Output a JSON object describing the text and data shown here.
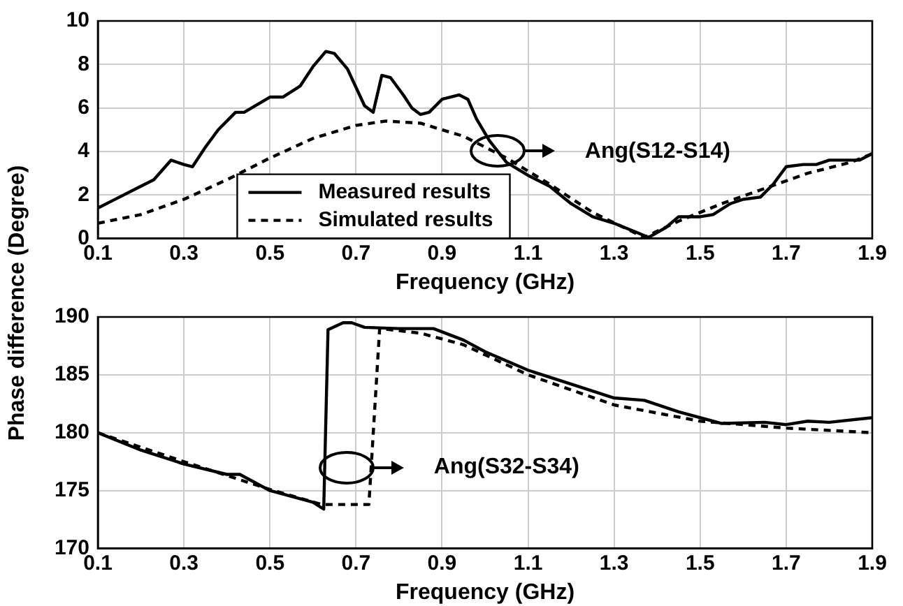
{
  "chart_data": [
    {
      "type": "line",
      "ylabel": "Phase difference (Degree)",
      "xlabel": "Frequency (GHz)",
      "xlim": [
        0.1,
        1.9
      ],
      "xticks": [
        0.1,
        0.3,
        0.5,
        0.7,
        0.9,
        1.1,
        1.3,
        1.5,
        1.7,
        1.9
      ],
      "ylim": [
        0,
        10
      ],
      "yticks": [
        0,
        2,
        4,
        6,
        8,
        10
      ],
      "grid": true,
      "legend": "bottom left",
      "marker": "none",
      "annotations": [
        "Ang(S12-S14)"
      ],
      "series": [
        {
          "name": "Measured results",
          "color": "#000000",
          "line_style": "solid",
          "x": [
            0.1,
            0.13,
            0.2,
            0.23,
            0.27,
            0.3,
            0.32,
            0.35,
            0.38,
            0.42,
            0.44,
            0.5,
            0.53,
            0.57,
            0.6,
            0.63,
            0.65,
            0.68,
            0.72,
            0.74,
            0.76,
            0.78,
            0.81,
            0.83,
            0.85,
            0.87,
            0.9,
            0.94,
            0.96,
            0.98,
            1.01,
            1.05,
            1.1,
            1.15,
            1.2,
            1.25,
            1.3,
            1.35,
            1.38,
            1.42,
            1.45,
            1.5,
            1.53,
            1.57,
            1.6,
            1.64,
            1.67,
            1.7,
            1.74,
            1.77,
            1.8,
            1.84,
            1.87,
            1.9
          ],
          "values": [
            1.4,
            1.7,
            2.4,
            2.7,
            3.6,
            3.4,
            3.3,
            4.2,
            5.0,
            5.8,
            5.8,
            6.5,
            6.5,
            7.0,
            7.9,
            8.6,
            8.5,
            7.8,
            6.1,
            5.8,
            7.5,
            7.4,
            6.6,
            6.0,
            5.7,
            5.8,
            6.4,
            6.6,
            6.4,
            5.5,
            4.5,
            3.5,
            2.9,
            2.4,
            1.6,
            1.0,
            0.7,
            0.3,
            0.05,
            0.5,
            1.0,
            1.0,
            1.1,
            1.6,
            1.8,
            1.9,
            2.5,
            3.3,
            3.4,
            3.4,
            3.6,
            3.6,
            3.6,
            3.9
          ]
        },
        {
          "name": "Simulated results",
          "color": "#000000",
          "line_style": "dashed",
          "x": [
            0.1,
            0.2,
            0.3,
            0.4,
            0.5,
            0.6,
            0.7,
            0.77,
            0.85,
            0.95,
            1.05,
            1.15,
            1.25,
            1.37,
            1.45,
            1.55,
            1.65,
            1.75,
            1.85,
            1.9
          ],
          "values": [
            0.7,
            1.1,
            1.8,
            2.7,
            3.7,
            4.6,
            5.2,
            5.4,
            5.3,
            4.7,
            3.7,
            2.5,
            1.2,
            0.05,
            0.8,
            1.6,
            2.3,
            3.0,
            3.5,
            3.9
          ]
        }
      ]
    },
    {
      "type": "line",
      "xlabel": "Frequency (GHz)",
      "xlim": [
        0.1,
        1.9
      ],
      "xticks": [
        0.1,
        0.3,
        0.5,
        0.7,
        0.9,
        1.1,
        1.3,
        1.5,
        1.7,
        1.9
      ],
      "ylim": [
        170,
        190
      ],
      "yticks": [
        170,
        175,
        180,
        185,
        190
      ],
      "grid": true,
      "marker": "none",
      "annotations": [
        "Ang(S32-S34)"
      ],
      "series": [
        {
          "color": "#000000",
          "line_style": "solid",
          "x": [
            0.1,
            0.2,
            0.3,
            0.4,
            0.43,
            0.5,
            0.6,
            0.625,
            0.635,
            0.67,
            0.69,
            0.72,
            0.8,
            0.88,
            0.95,
            1.0,
            1.1,
            1.2,
            1.3,
            1.37,
            1.45,
            1.55,
            1.65,
            1.7,
            1.75,
            1.8,
            1.9
          ],
          "values": [
            180,
            178.5,
            177.3,
            176.4,
            176.4,
            175.0,
            174.0,
            173.4,
            188.9,
            189.5,
            189.5,
            189.1,
            189.0,
            189.0,
            188.0,
            187.0,
            185.4,
            184.2,
            183.0,
            182.8,
            181.8,
            180.8,
            180.9,
            180.7,
            181.0,
            180.9,
            181.3
          ]
        },
        {
          "color": "#000000",
          "line_style": "dashed",
          "x": [
            0.1,
            0.3,
            0.5,
            0.62,
            0.73,
            0.755,
            0.85,
            0.95,
            1.1,
            1.3,
            1.5,
            1.7,
            1.9
          ],
          "values": [
            180,
            177.5,
            175.1,
            173.8,
            173.8,
            189.0,
            188.6,
            187.6,
            185.0,
            182.4,
            181.0,
            180.4,
            180.0
          ]
        }
      ]
    }
  ]
}
